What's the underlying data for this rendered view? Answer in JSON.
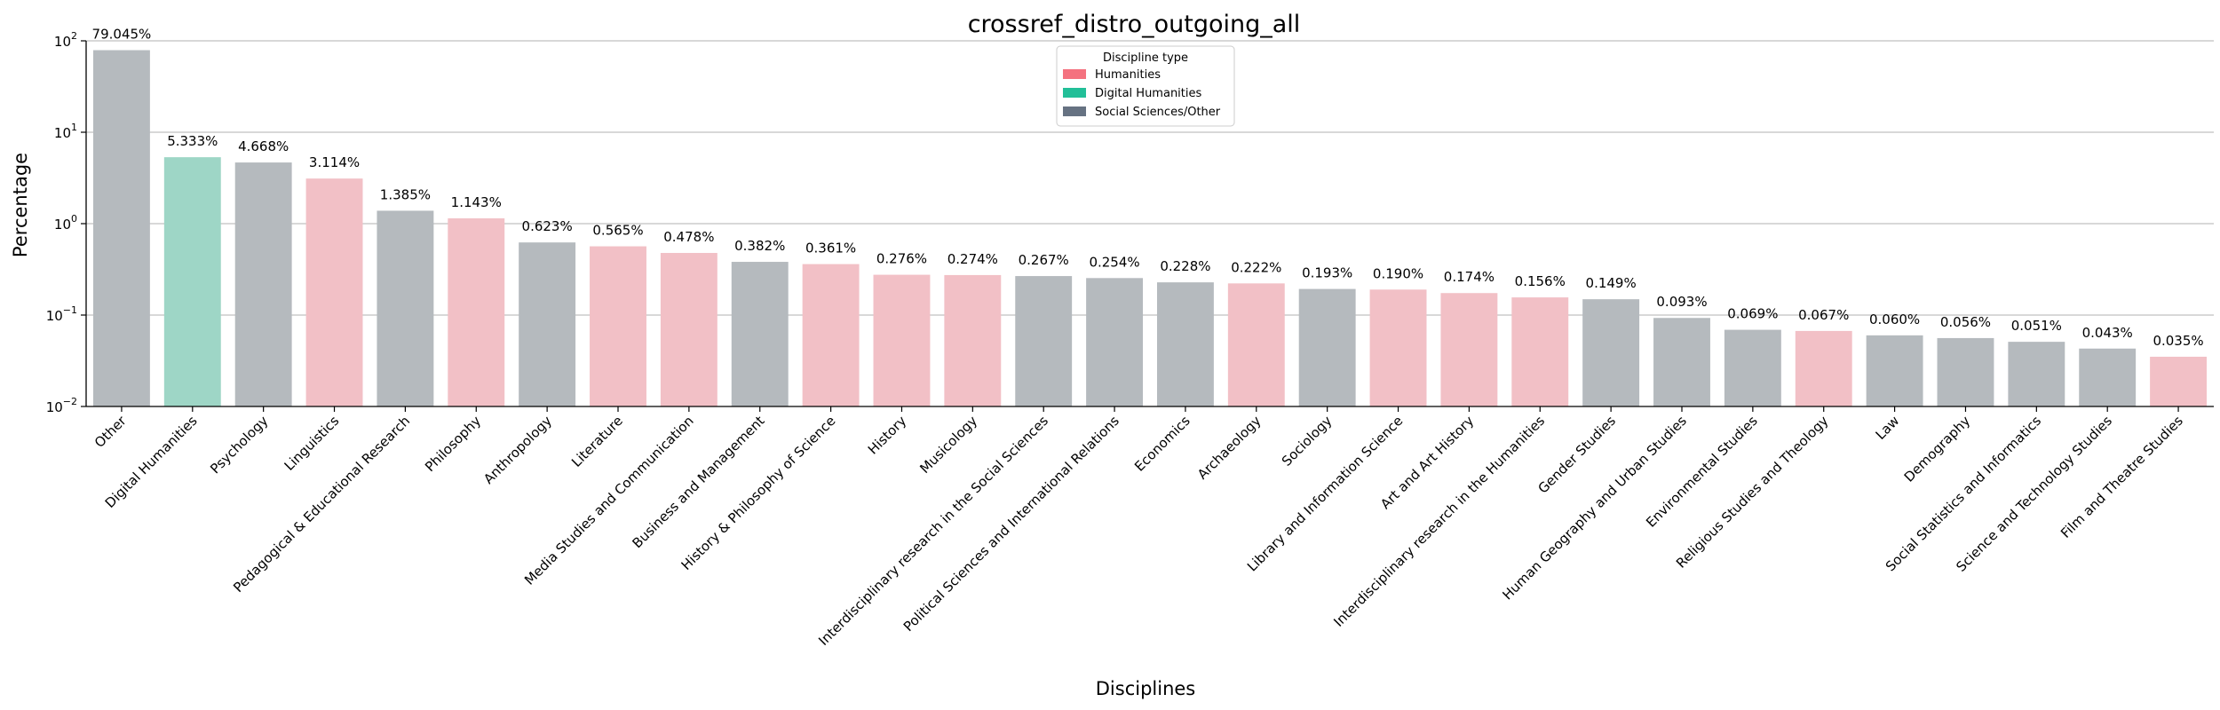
{
  "chart_data": {
    "type": "bar",
    "title": "crossref_distro_outgoing_all",
    "xlabel": "Disciplines",
    "ylabel": "Percentage",
    "yscale": "log",
    "ylim": [
      0.01,
      100
    ],
    "yticks": [
      {
        "value": 0.01,
        "base": "10",
        "exp": "−2"
      },
      {
        "value": 0.1,
        "base": "10",
        "exp": "−1"
      },
      {
        "value": 1,
        "base": "10",
        "exp": "0"
      },
      {
        "value": 10,
        "base": "10",
        "exp": "1"
      },
      {
        "value": 100,
        "base": "10",
        "exp": "2"
      }
    ],
    "grid": "horizontal",
    "legend": {
      "title": "Discipline type",
      "placement": "top-center",
      "entries": [
        {
          "label": "Humanities",
          "color": "#f4727f"
        },
        {
          "label": "Digital Humanities",
          "color": "#22bf98"
        },
        {
          "label": "Social Sciences/Other",
          "color": "#667282"
        }
      ]
    },
    "bar_colors": {
      "Humanities": "#f2c0c6",
      "Digital Humanities": "#9ed6c6",
      "Social Sciences/Other": "#b5babe"
    },
    "categories": [
      "Other",
      "Digital Humanities",
      "Psychology",
      "Linguistics",
      "Pedagogical & Educational Research",
      "Philosophy",
      "Anthropology",
      "Literature",
      "Media Studies and Communication",
      "Business and Management",
      "History & Philosophy of Science",
      "History",
      "Musicology",
      "Interdisciplinary research in the Social Sciences",
      "Political Sciences and International Relations",
      "Economics",
      "Archaeology",
      "Sociology",
      "Library and Information Science",
      "Art and Art History",
      "Interdisciplinary research in the Humanities",
      "Gender Studies",
      "Human Geography and Urban Studies",
      "Environmental Studies",
      "Religious Studies and Theology",
      "Law",
      "Demography",
      "Social Statistics and Informatics",
      "Science and Technology Studies",
      "Film and Theatre Studies"
    ],
    "values": [
      79.045,
      5.333,
      4.668,
      3.114,
      1.385,
      1.143,
      0.623,
      0.565,
      0.478,
      0.382,
      0.361,
      0.276,
      0.274,
      0.267,
      0.254,
      0.228,
      0.222,
      0.193,
      0.19,
      0.174,
      0.156,
      0.149,
      0.093,
      0.069,
      0.067,
      0.06,
      0.056,
      0.051,
      0.043,
      0.035
    ],
    "value_labels": [
      "79.045%",
      "5.333%",
      "4.668%",
      "3.114%",
      "1.385%",
      "1.143%",
      "0.623%",
      "0.565%",
      "0.478%",
      "0.382%",
      "0.361%",
      "0.276%",
      "0.274%",
      "0.267%",
      "0.254%",
      "0.228%",
      "0.222%",
      "0.193%",
      "0.190%",
      "0.174%",
      "0.156%",
      "0.149%",
      "0.093%",
      "0.069%",
      "0.067%",
      "0.060%",
      "0.056%",
      "0.051%",
      "0.043%",
      "0.035%"
    ],
    "types": [
      "Social Sciences/Other",
      "Digital Humanities",
      "Social Sciences/Other",
      "Humanities",
      "Social Sciences/Other",
      "Humanities",
      "Social Sciences/Other",
      "Humanities",
      "Humanities",
      "Social Sciences/Other",
      "Humanities",
      "Humanities",
      "Humanities",
      "Social Sciences/Other",
      "Social Sciences/Other",
      "Social Sciences/Other",
      "Humanities",
      "Social Sciences/Other",
      "Humanities",
      "Humanities",
      "Humanities",
      "Social Sciences/Other",
      "Social Sciences/Other",
      "Social Sciences/Other",
      "Humanities",
      "Social Sciences/Other",
      "Social Sciences/Other",
      "Social Sciences/Other",
      "Social Sciences/Other",
      "Humanities"
    ]
  }
}
